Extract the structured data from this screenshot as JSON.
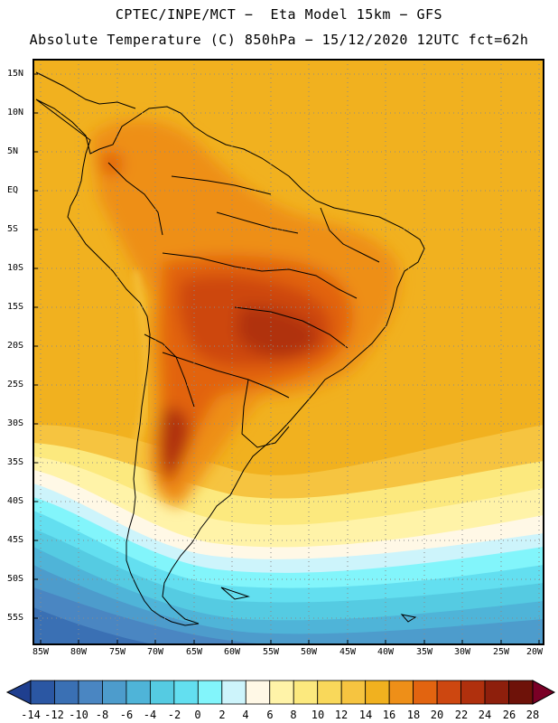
{
  "header": {
    "line1": "CPTEC/INPE/MCT −  Eta Model 15km − GFS",
    "line2": "Absolute Temperature (C) 850hPa − 15/12/2020 12UTC fct=62h"
  },
  "map": {
    "latitudes": [
      "15N",
      "10N",
      "5N",
      "EQ",
      "5S",
      "10S",
      "15S",
      "20S",
      "25S",
      "30S",
      "35S",
      "40S",
      "45S",
      "50S",
      "55S"
    ],
    "longitudes": [
      "85W",
      "80W",
      "75W",
      "70W",
      "65W",
      "60W",
      "55W",
      "50W",
      "45W",
      "40W",
      "35W",
      "30W",
      "25W",
      "20W"
    ]
  },
  "colorbar": {
    "labels": [
      "-14",
      "-12",
      "-10",
      "-8",
      "-6",
      "-4",
      "-2",
      "0",
      "2",
      "4",
      "6",
      "8",
      "10",
      "12",
      "14",
      "16",
      "18",
      "20",
      "22",
      "24",
      "26",
      "28"
    ],
    "colors": [
      "#1f3f8f",
      "#2b57a3",
      "#3a70b4",
      "#4a86c2",
      "#4d9ccc",
      "#4fb4d8",
      "#55cbe2",
      "#63dff0",
      "#82f5fb",
      "#cdf4fb",
      "#fff8e6",
      "#fff3a8",
      "#fce97e",
      "#f9d85a",
      "#f6c440",
      "#f1b11f",
      "#ee8f18",
      "#e26410",
      "#cd4710",
      "#b0300d",
      "#8e1f0c",
      "#6e1209",
      "#7a0026"
    ]
  }
}
